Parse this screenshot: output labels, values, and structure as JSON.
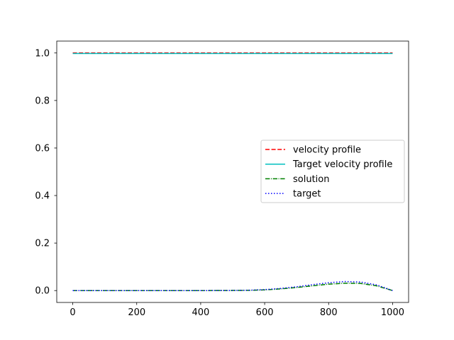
{
  "chart_data": {
    "type": "line",
    "title": "",
    "xlabel": "",
    "ylabel": "",
    "xlim": [
      -50,
      1050
    ],
    "ylim": [
      -0.05,
      1.05
    ],
    "xticks": [
      0,
      200,
      400,
      600,
      800,
      1000
    ],
    "xtick_labels": [
      "0",
      "200",
      "400",
      "600",
      "800",
      "1000"
    ],
    "yticks": [
      0.0,
      0.2,
      0.4,
      0.6,
      0.8,
      1.0
    ],
    "ytick_labels": [
      "0.0",
      "0.2",
      "0.4",
      "0.6",
      "0.8",
      "1.0"
    ],
    "grid": false,
    "legend_position": "center-right",
    "series": [
      {
        "name": "velocity profile",
        "color": "#ff0000",
        "style": "dashed",
        "x": [
          0,
          1000
        ],
        "y": [
          1.0,
          1.0
        ]
      },
      {
        "name": "Target velocity profile",
        "color": "#00bfbf",
        "style": "solid",
        "x": [
          0,
          1000
        ],
        "y": [
          0.998,
          0.998
        ]
      },
      {
        "name": "solution",
        "color": "#008000",
        "style": "dashdot",
        "x": [
          0,
          100,
          200,
          300,
          400,
          500,
          550,
          600,
          650,
          700,
          750,
          800,
          850,
          900,
          950,
          1000
        ],
        "y": [
          0.0,
          0.0,
          0.0,
          0.0,
          0.0,
          0.0005,
          0.001,
          0.003,
          0.007,
          0.013,
          0.02,
          0.027,
          0.031,
          0.03,
          0.02,
          0.0
        ]
      },
      {
        "name": "target",
        "color": "#0000ff",
        "style": "dotted",
        "x": [
          0,
          100,
          200,
          300,
          400,
          500,
          550,
          600,
          650,
          700,
          750,
          800,
          850,
          900,
          950,
          1000
        ],
        "y": [
          0.0,
          0.0,
          0.0,
          0.0,
          0.0,
          0.0005,
          0.0015,
          0.004,
          0.009,
          0.016,
          0.025,
          0.033,
          0.038,
          0.036,
          0.024,
          0.0
        ]
      }
    ]
  }
}
